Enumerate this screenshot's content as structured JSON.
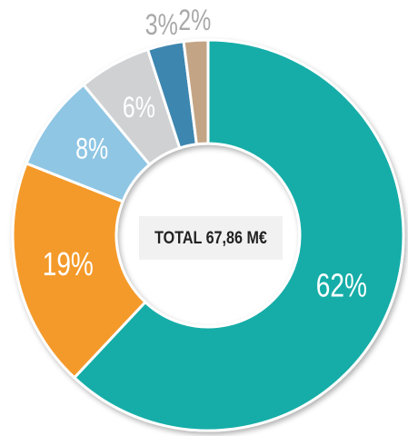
{
  "chart_data": {
    "type": "donut",
    "center_text": "TOTAL 67,86 M€",
    "values": [
      62,
      19,
      8,
      6,
      3,
      2
    ],
    "value_labels": [
      "62%",
      "19%",
      "8%",
      "6%",
      "3%",
      "2%"
    ],
    "colors": [
      "#14ada8",
      "#f49a2c",
      "#8fc6e4",
      "#cfd1d3",
      "#3e86b0",
      "#c3a585"
    ]
  }
}
